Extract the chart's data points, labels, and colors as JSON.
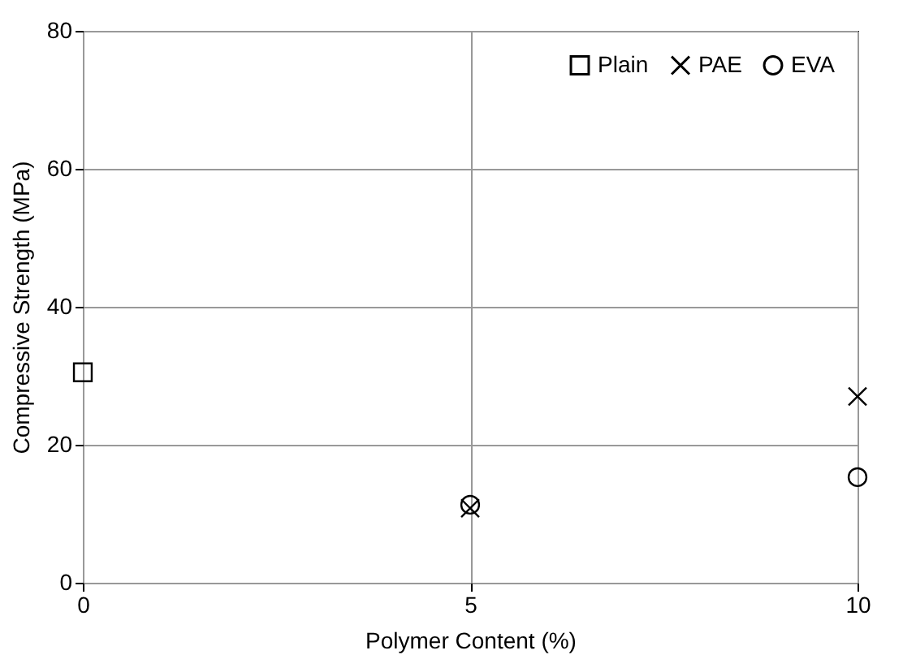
{
  "chart_data": {
    "type": "scatter",
    "xlabel": "Polymer Content (%)",
    "ylabel": "Compressive Strength (MPa)",
    "xlim": [
      0,
      10
    ],
    "xticks": [
      0,
      5,
      10
    ],
    "ylim": [
      0,
      80
    ],
    "yticks": [
      0,
      20,
      40,
      60,
      80
    ],
    "grid": true,
    "legend": "top right",
    "series": [
      {
        "name": "Plain",
        "color": "#000000",
        "marker": "square",
        "x": [
          0
        ],
        "values": [
          30.5
        ]
      },
      {
        "name": "PAE",
        "color": "#000000",
        "marker": "cross",
        "x": [
          5,
          10
        ],
        "values": [
          10.8,
          27
        ]
      },
      {
        "name": "EVA",
        "color": "#000000",
        "marker": "circle",
        "x": [
          5,
          10
        ],
        "values": [
          11.3,
          15.3
        ]
      }
    ]
  }
}
